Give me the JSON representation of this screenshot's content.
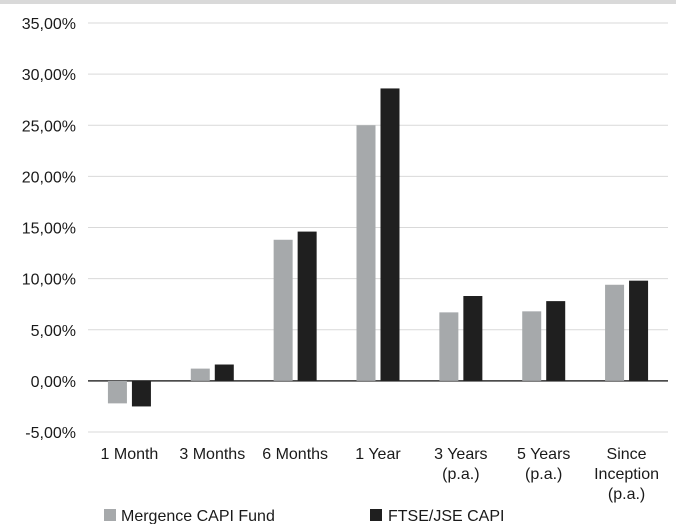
{
  "chart_data": {
    "type": "bar",
    "categories": [
      [
        "1 Month"
      ],
      [
        "3 Months"
      ],
      [
        "6 Months"
      ],
      [
        "1 Year"
      ],
      [
        "3 Years",
        "(p.a.)"
      ],
      [
        "5 Years",
        "(p.a.)"
      ],
      [
        "Since",
        "Inception",
        "(p.a.)"
      ]
    ],
    "series": [
      {
        "name": "Mergence CAPI Fund",
        "color": "#a6a9ab",
        "values": [
          -2.2,
          1.2,
          13.8,
          25.0,
          6.7,
          6.8,
          9.4
        ]
      },
      {
        "name": "FTSE/JSE CAPI",
        "color": "#1f1f1f",
        "values": [
          -2.5,
          1.6,
          14.6,
          28.6,
          8.3,
          7.8,
          9.8
        ]
      }
    ],
    "yticks": [
      "35,00%",
      "30,00%",
      "25,00%",
      "20,00%",
      "15,00%",
      "10,00%",
      "5,00%",
      "0,00%",
      "-5,00%"
    ],
    "ylim": [
      -5,
      35
    ],
    "grid": true,
    "legend_position": "bottom"
  }
}
